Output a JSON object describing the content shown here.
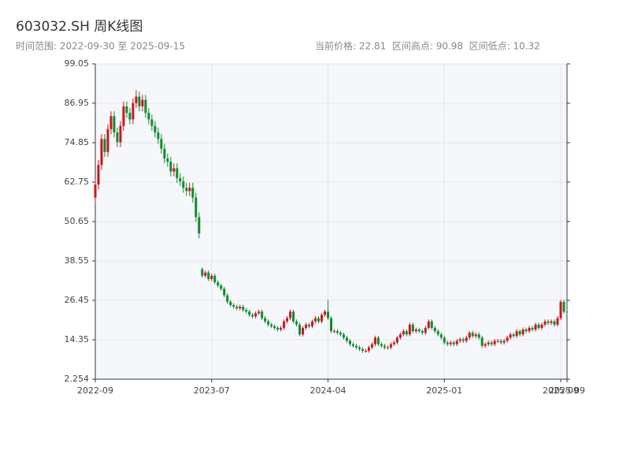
{
  "chart_data": {
    "type": "candlestick",
    "title": "603032.SH 周K线图",
    "subtitle": "时间范围: 2022-09-30 至 2025-09-15",
    "summary": "当前价格: 22.81  区间高点: 90.98  区间低点: 10.32",
    "up_color": "#c8171e",
    "down_color": "#118a2f",
    "grid": true,
    "ylim": [
      2.254,
      99.05
    ],
    "yticks": [
      2.254,
      14.35,
      26.45,
      38.55,
      50.65,
      62.75,
      74.85,
      86.95,
      99.05
    ],
    "categories": [
      "2022-09",
      null,
      null,
      null,
      null,
      null,
      null,
      null,
      null,
      null,
      null,
      null,
      null,
      null,
      null,
      null,
      null,
      null,
      null,
      null,
      null,
      null,
      null,
      null,
      null,
      null,
      null,
      null,
      null,
      null,
      null,
      null,
      null,
      null,
      null,
      null,
      null,
      "2023-07",
      null,
      null,
      null,
      null,
      null,
      null,
      null,
      null,
      null,
      null,
      null,
      null,
      null,
      null,
      null,
      null,
      null,
      null,
      null,
      null,
      null,
      null,
      null,
      null,
      null,
      null,
      null,
      null,
      null,
      null,
      null,
      null,
      null,
      null,
      null,
      null,
      "2024-04",
      null,
      null,
      null,
      null,
      null,
      null,
      null,
      null,
      null,
      null,
      null,
      null,
      null,
      null,
      null,
      null,
      null,
      null,
      null,
      null,
      null,
      null,
      null,
      null,
      null,
      null,
      null,
      null,
      null,
      null,
      null,
      null,
      null,
      null,
      null,
      null,
      "2025-01",
      null,
      null,
      null,
      null,
      null,
      null,
      null,
      null,
      null,
      null,
      null,
      null,
      null,
      null,
      null,
      null,
      null,
      null,
      null,
      null,
      null,
      null,
      null,
      null,
      null,
      null,
      null,
      null,
      null,
      null,
      null,
      null,
      null,
      null,
      null,
      null,
      "2025-09",
      null,
      "2025-09"
    ],
    "ohlc": [
      [
        58,
        63.5,
        56.5,
        62
      ],
      [
        62,
        69.5,
        60.5,
        68
      ],
      [
        68,
        77.5,
        66.5,
        76
      ],
      [
        76,
        77.5,
        70.5,
        72
      ],
      [
        72,
        80.5,
        70.5,
        79
      ],
      [
        79,
        84.5,
        77.5,
        83
      ],
      [
        83,
        84.5,
        76.5,
        78
      ],
      [
        78,
        79.5,
        73.5,
        75
      ],
      [
        75,
        81.5,
        73.5,
        80
      ],
      [
        80,
        87.5,
        78.5,
        86
      ],
      [
        86,
        87.5,
        82.5,
        84
      ],
      [
        84,
        85.5,
        80.5,
        82
      ],
      [
        82,
        88.5,
        80.5,
        87
      ],
      [
        87,
        90.98,
        85.5,
        89
      ],
      [
        89,
        90.5,
        84.5,
        86
      ],
      [
        86,
        89.5,
        84.5,
        88
      ],
      [
        88,
        89.5,
        82.5,
        84
      ],
      [
        84,
        85.5,
        80.5,
        82
      ],
      [
        82,
        83.5,
        78.5,
        80
      ],
      [
        80,
        81.5,
        76.5,
        78
      ],
      [
        78,
        79.5,
        74.5,
        76
      ],
      [
        76,
        77.5,
        71.5,
        73
      ],
      [
        73,
        74.5,
        68.5,
        70
      ],
      [
        70,
        71.5,
        67.5,
        69
      ],
      [
        69,
        70.5,
        64.5,
        66
      ],
      [
        66,
        68.5,
        64.5,
        67
      ],
      [
        67,
        68.5,
        62.5,
        64
      ],
      [
        64,
        65.5,
        61.5,
        63
      ],
      [
        63,
        64.5,
        59.5,
        61
      ],
      [
        61,
        62.5,
        58.5,
        60
      ],
      [
        60,
        62.5,
        58.5,
        61
      ],
      [
        61,
        62.5,
        56.5,
        58
      ],
      [
        58,
        59.5,
        50.5,
        52
      ],
      [
        52,
        53.5,
        45.5,
        47
      ],
      [
        36,
        36.6,
        33.4,
        34
      ],
      [
        34,
        35.6,
        33.4,
        35
      ],
      [
        35,
        35.6,
        32.4,
        33
      ],
      [
        33,
        34.6,
        32.4,
        34
      ],
      [
        34,
        34.6,
        31.4,
        32
      ],
      [
        32,
        32.6,
        30.4,
        31
      ],
      [
        31,
        31.6,
        29.4,
        30
      ],
      [
        30,
        30.6,
        27.4,
        28
      ],
      [
        28,
        28.6,
        25.4,
        26
      ],
      [
        26,
        26.6,
        24.4,
        25
      ],
      [
        25,
        25.6,
        23.9,
        24.5
      ],
      [
        24.5,
        25.1,
        23.4,
        24
      ],
      [
        24,
        25.1,
        23.4,
        24.5
      ],
      [
        24.5,
        25.1,
        22.9,
        23.5
      ],
      [
        23.5,
        24.1,
        22.4,
        23
      ],
      [
        23,
        23.6,
        21.4,
        22
      ],
      [
        22,
        22.6,
        20.9,
        21.5
      ],
      [
        21.5,
        23.1,
        20.9,
        22.5
      ],
      [
        22.5,
        23.6,
        21.9,
        23
      ],
      [
        23,
        23.6,
        20.4,
        21
      ],
      [
        21,
        21.6,
        19.4,
        20
      ],
      [
        20,
        20.6,
        18.4,
        19
      ],
      [
        19,
        19.6,
        17.9,
        18.5
      ],
      [
        18.5,
        19.1,
        17.4,
        18
      ],
      [
        18,
        18.6,
        16.9,
        17.5
      ],
      [
        17.5,
        18.6,
        16.9,
        18
      ],
      [
        18,
        20.6,
        17.4,
        20
      ],
      [
        20,
        21.6,
        19.4,
        21
      ],
      [
        21,
        23.6,
        20.4,
        23
      ],
      [
        23,
        23.6,
        19.4,
        20
      ],
      [
        20,
        20.6,
        18.4,
        19
      ],
      [
        19,
        19.6,
        15.4,
        16
      ],
      [
        16,
        18.6,
        15.4,
        18
      ],
      [
        18,
        19.6,
        17.4,
        19
      ],
      [
        19,
        19.6,
        17.9,
        18.5
      ],
      [
        18.5,
        20.6,
        17.9,
        20
      ],
      [
        20,
        21.6,
        19.4,
        21
      ],
      [
        21,
        21.6,
        19.4,
        20
      ],
      [
        20,
        22.6,
        19.4,
        22
      ],
      [
        22,
        23.6,
        21.4,
        23
      ],
      [
        23,
        26.5,
        20.4,
        21
      ],
      [
        21,
        21.6,
        16.4,
        17
      ],
      [
        17,
        17.6,
        16.4,
        17
      ],
      [
        17,
        17.6,
        15.9,
        16.5
      ],
      [
        16.5,
        17.1,
        15.4,
        16
      ],
      [
        16,
        16.6,
        14.4,
        15
      ],
      [
        15,
        15.6,
        13.4,
        14
      ],
      [
        14,
        14.6,
        12.4,
        13
      ],
      [
        13,
        13.6,
        11.9,
        12.5
      ],
      [
        12.5,
        13.1,
        11.4,
        12
      ],
      [
        12,
        12.6,
        10.9,
        11.5
      ],
      [
        11.5,
        12.1,
        10.32,
        11
      ],
      [
        11,
        11.6,
        10.4,
        11
      ],
      [
        11,
        12.6,
        10.4,
        12
      ],
      [
        12,
        13.6,
        11.4,
        13
      ],
      [
        13,
        15.6,
        12.4,
        15
      ],
      [
        15,
        15.6,
        12.4,
        13
      ],
      [
        13,
        13.6,
        11.9,
        12.5
      ],
      [
        12.5,
        13.1,
        11.4,
        12
      ],
      [
        12,
        12.6,
        11.4,
        12
      ],
      [
        12,
        13.6,
        11.4,
        13
      ],
      [
        13,
        14.1,
        12.4,
        13.5
      ],
      [
        13.5,
        15.6,
        12.9,
        15
      ],
      [
        15,
        16.6,
        14.4,
        16
      ],
      [
        16,
        17.6,
        15.4,
        17
      ],
      [
        17,
        17.6,
        15.4,
        16
      ],
      [
        16,
        19.6,
        15.4,
        19
      ],
      [
        19,
        19.6,
        16.4,
        17
      ],
      [
        17,
        18.1,
        16.4,
        17.5
      ],
      [
        17.5,
        18.1,
        16.4,
        17
      ],
      [
        17,
        17.6,
        15.9,
        16.5
      ],
      [
        16.5,
        18.6,
        15.9,
        18
      ],
      [
        18,
        20.6,
        17.4,
        20
      ],
      [
        20,
        20.6,
        17.4,
        18
      ],
      [
        18,
        18.6,
        16.4,
        17
      ],
      [
        17,
        17.6,
        15.4,
        16
      ],
      [
        16,
        16.6,
        14.4,
        15
      ],
      [
        15,
        15.6,
        12.9,
        13.5
      ],
      [
        13.5,
        14.1,
        12.4,
        13
      ],
      [
        13,
        14.1,
        12.4,
        13.5
      ],
      [
        13.5,
        14.1,
        12.4,
        13
      ],
      [
        13,
        14.6,
        12.4,
        14
      ],
      [
        14,
        15.1,
        13.4,
        14.5
      ],
      [
        14.5,
        15.1,
        13.4,
        14
      ],
      [
        14,
        15.6,
        13.4,
        15
      ],
      [
        15,
        17.1,
        14.4,
        16.5
      ],
      [
        16.5,
        17.1,
        14.9,
        15.5
      ],
      [
        15.5,
        16.6,
        14.9,
        16
      ],
      [
        16,
        16.6,
        14.4,
        15
      ],
      [
        15,
        15.6,
        11.9,
        12.5
      ],
      [
        12.5,
        13.6,
        11.9,
        13
      ],
      [
        13,
        14.1,
        12.4,
        13.5
      ],
      [
        13.5,
        14.1,
        12.4,
        13
      ],
      [
        13,
        14.6,
        12.4,
        14
      ],
      [
        14,
        14.6,
        13.4,
        14
      ],
      [
        14,
        14.6,
        12.9,
        13.5
      ],
      [
        13.5,
        14.6,
        12.9,
        14
      ],
      [
        14,
        15.6,
        13.4,
        15
      ],
      [
        15,
        16.6,
        14.4,
        16
      ],
      [
        16,
        16.6,
        14.9,
        15.5
      ],
      [
        15.5,
        17.6,
        14.9,
        17
      ],
      [
        17,
        17.6,
        15.4,
        16
      ],
      [
        16,
        18.1,
        15.4,
        17.5
      ],
      [
        17.5,
        18.1,
        16.4,
        17
      ],
      [
        17,
        18.6,
        16.4,
        18
      ],
      [
        18,
        18.6,
        16.9,
        17.5
      ],
      [
        17.5,
        19.6,
        16.9,
        19
      ],
      [
        19,
        19.6,
        17.4,
        18
      ],
      [
        18,
        19.6,
        17.4,
        19
      ],
      [
        19,
        20.6,
        18.4,
        20
      ],
      [
        20,
        20.6,
        18.9,
        19.5
      ],
      [
        19.5,
        20.6,
        18.9,
        20
      ],
      [
        20,
        20.6,
        18.4,
        19
      ],
      [
        19,
        21.6,
        18.4,
        21
      ],
      [
        21,
        26.6,
        20.4,
        26
      ],
      [
        26,
        26.6,
        22.4,
        23
      ],
      [
        23,
        23.6,
        22.2,
        22.81
      ]
    ]
  }
}
